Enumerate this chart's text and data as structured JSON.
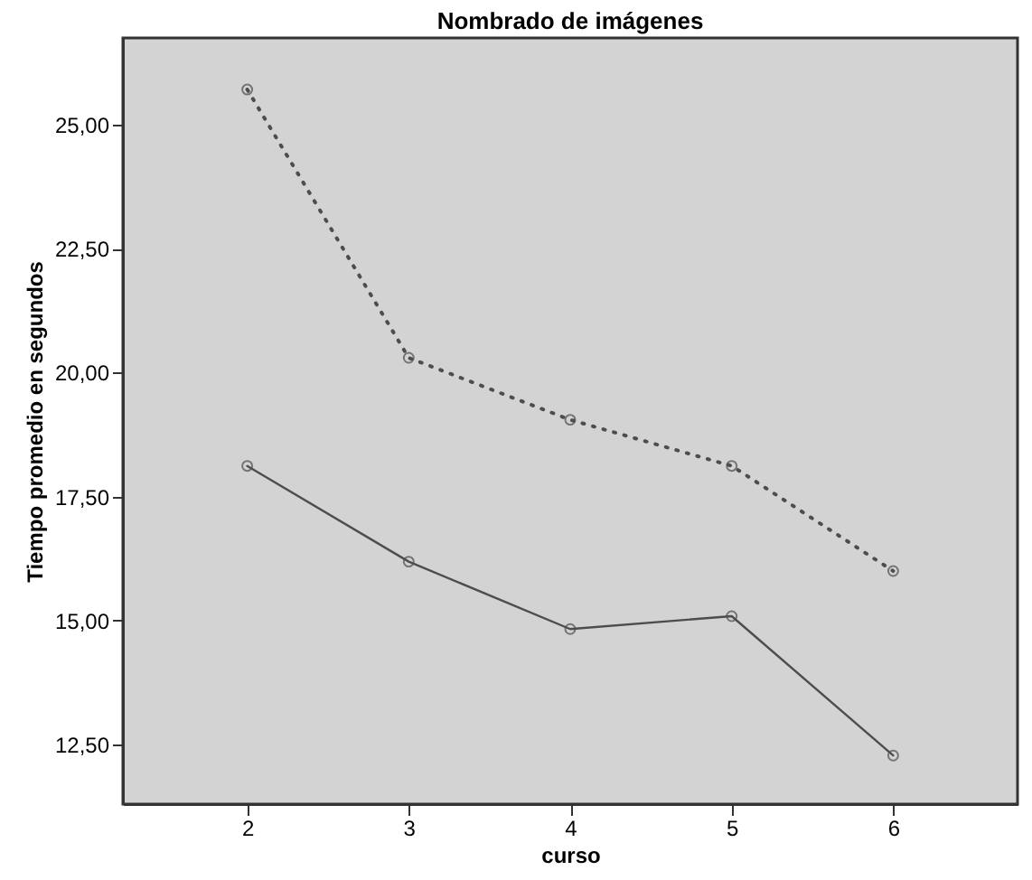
{
  "chart_data": {
    "type": "line",
    "title": "Nombrado de imágenes",
    "xlabel": "curso",
    "ylabel": "Tiempo promedio en segundos",
    "x": [
      2,
      3,
      4,
      5,
      6
    ],
    "series": [
      {
        "color": "#4d4d4d",
        "line_style": "dotted",
        "values": [
          25.71,
          20.3,
          19.05,
          18.12,
          16.0
        ]
      },
      {
        "color": "#4d4d4d",
        "line_style": "solid",
        "values": [
          18.12,
          16.19,
          14.83,
          15.09,
          12.28
        ]
      }
    ],
    "marker": "circle",
    "grid": false,
    "xlim": [
      1.23,
      6.77
    ],
    "xticks": [
      2,
      3,
      4,
      5,
      6
    ],
    "ylim": [
      11.3,
      26.75
    ],
    "yticks": [
      {
        "value": 12.5,
        "label": "12,50"
      },
      {
        "value": 15,
        "label": "15,00"
      },
      {
        "value": 17.5,
        "label": "17,50"
      },
      {
        "value": 20,
        "label": "20,00"
      },
      {
        "value": 22.5,
        "label": "22,50"
      },
      {
        "value": 25,
        "label": "25,00"
      }
    ]
  }
}
